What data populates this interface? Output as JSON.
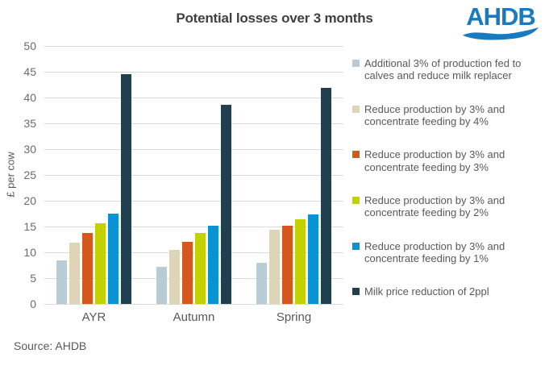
{
  "title": "Potential losses over 3 months",
  "source": "Source: AHDB",
  "logo": {
    "text": "AHDB",
    "color": "#1a7abf"
  },
  "colors": {
    "gridline": "#d9d9d9",
    "axis_tick_text": "#6b6b6b",
    "body_text": "#595959",
    "title_text": "#404040",
    "background": "#ffffff"
  },
  "chart_data": {
    "type": "bar",
    "title": "Potential losses over 3 months",
    "xlabel": "",
    "ylabel": "£ per cow",
    "ylim": [
      0,
      50
    ],
    "ytick_step": 5,
    "yticks": [
      0,
      5,
      10,
      15,
      20,
      25,
      30,
      35,
      40,
      45,
      50
    ],
    "grid": true,
    "legend_position": "right",
    "categories": [
      "AYR",
      "Autumn",
      "Spring"
    ],
    "series": [
      {
        "name": "Additional 3% of production fed to calves and reduce milk replacer",
        "color": "#b9cbd5",
        "values": [
          8.5,
          7.2,
          8.0
        ]
      },
      {
        "name": "Reduce production by 3% and concentrate feeding by 4%",
        "color": "#ded5b6",
        "values": [
          11.9,
          10.5,
          14.3
        ]
      },
      {
        "name": "Reduce production by 3% and concentrate feeding by 3%",
        "color": "#d4571e",
        "values": [
          13.8,
          12.1,
          15.2
        ]
      },
      {
        "name": "Reduce production by 3% and concentrate feeding by 2%",
        "color": "#c3d100",
        "values": [
          15.6,
          13.8,
          16.4
        ]
      },
      {
        "name": "Reduce production by 3% and concentrate feeding by 1%",
        "color": "#0993d5",
        "values": [
          17.5,
          15.1,
          17.3
        ]
      },
      {
        "name": "Milk price reduction of 2ppl",
        "color": "#20404f",
        "values": [
          44.5,
          38.6,
          41.9
        ]
      }
    ]
  }
}
